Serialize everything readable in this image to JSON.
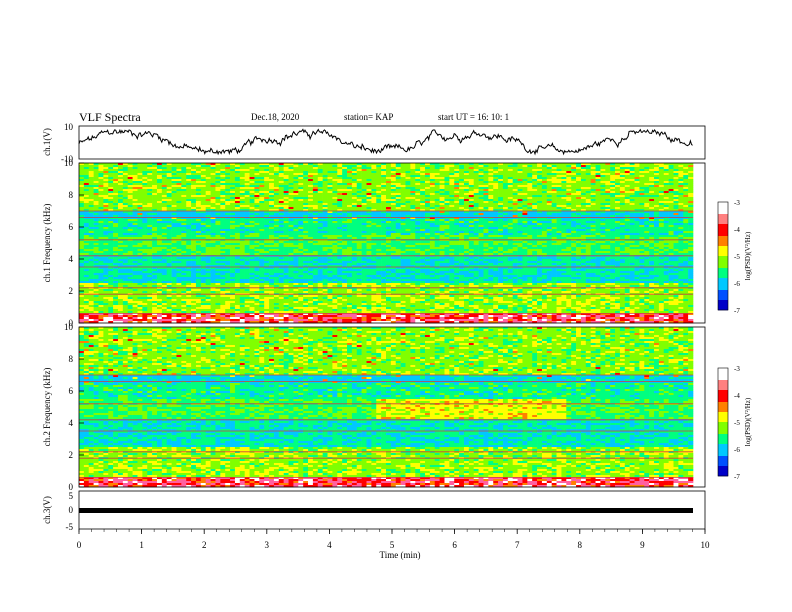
{
  "header": {
    "title": "VLF Spectra",
    "date": "Dec.18, 2020",
    "station": "station= KAP",
    "start": "start  UT =   16: 10: 1"
  },
  "chart_data": [
    {
      "type": "line",
      "panel": "ch1-waveform",
      "ylabel": "ch.1(V)",
      "ylim": [
        -10,
        10
      ],
      "yticks": [
        "10",
        "-10"
      ],
      "xlim": [
        0,
        9.8
      ]
    },
    {
      "type": "heatmap",
      "panel": "ch1-spectrogram",
      "ylabel": "ch.1 Frequency (kHz)",
      "ylim": [
        0,
        10
      ],
      "yticks": [
        "0",
        "2",
        "4",
        "6",
        "8",
        "10"
      ],
      "colorbar": {
        "label": "log(PSD)(V²/Hz)",
        "range": [
          -7,
          -3
        ],
        "ticks": [
          "-3",
          "-4",
          "-5",
          "-6",
          "-7"
        ]
      }
    },
    {
      "type": "heatmap",
      "panel": "ch2-spectrogram",
      "ylabel": "ch.2 Frequency (kHz)",
      "ylim": [
        0,
        10
      ],
      "yticks": [
        "0",
        "2",
        "4",
        "6",
        "8",
        "10"
      ],
      "colorbar": {
        "label": "log(PSD)(V²/Hz)",
        "range": [
          -7,
          -3
        ],
        "ticks": [
          "-3",
          "-4",
          "-5",
          "-6",
          "-7"
        ]
      }
    },
    {
      "type": "line",
      "panel": "ch3-waveform",
      "ylabel": "ch.3(V)",
      "ylim": [
        -5,
        5
      ],
      "yticks": [
        "5",
        "0",
        "-5"
      ],
      "x": [
        0,
        9.8
      ],
      "y": [
        0,
        0
      ]
    }
  ],
  "xaxis": {
    "label": "Time  (min)",
    "range": [
      0,
      10
    ],
    "ticks": [
      "0",
      "1",
      "2",
      "3",
      "4",
      "5",
      "6",
      "7",
      "8",
      "9",
      "10"
    ]
  },
  "colors": {
    "waveform": "#000000",
    "colormap": [
      "#0000c8",
      "#0050ff",
      "#00c8ff",
      "#00ff80",
      "#80ff00",
      "#ffff00",
      "#ff8000",
      "#ff0000",
      "#ff60a0",
      "#ffffff"
    ]
  }
}
